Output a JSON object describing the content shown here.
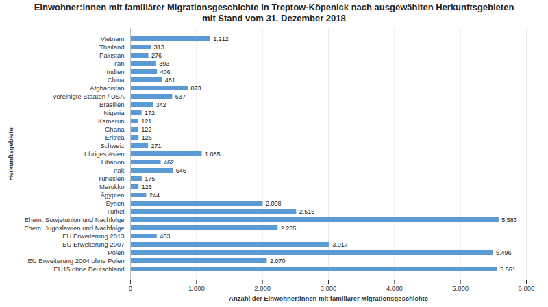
{
  "chart_data": {
    "type": "bar",
    "orientation": "horizontal",
    "title": "Einwohner:innen mit familiärer Migrationsgeschichte in Treptow-Köpenick nach ausgewählten Herkunftsgebieten",
    "subtitle": "mit Stand vom 31. Dezember 2018",
    "x_label": "Anzahl der Einwohner:innen mit familiärer Migrationsgeschichte",
    "y_label": "Herkunftsgebiete",
    "categories": [
      "Vietnam",
      "Thailand",
      "Pakistan",
      "Iran",
      "Indien",
      "China",
      "Afghanistan",
      "Vereinigte Staaten / USA",
      "Brasilien",
      "Nigeria",
      "Kamerun",
      "Ghana",
      "Eritrea",
      "Schweiz",
      "Übriges Asien",
      "Libanon",
      "Irak",
      "Tunesien",
      "Marokko",
      "Ägypten",
      "Syrien",
      "Türkei",
      "Ehem. Sowjetunion und Nachfolge",
      "Ehem. Jugoslawien und Nachfolge",
      "EU Erweiterung 2013",
      "EU Erweiterung 2007",
      "Polen",
      "EU Erweiterung 2004 ohne Polen",
      "EU15 ohne Deutschland"
    ],
    "values": [
      1212,
      313,
      276,
      393,
      406,
      481,
      873,
      637,
      342,
      172,
      121,
      122,
      126,
      271,
      1085,
      462,
      646,
      175,
      126,
      244,
      2008,
      2515,
      5583,
      2235,
      403,
      3017,
      5496,
      2070,
      5561
    ],
    "value_labels": [
      "1.212",
      "313",
      "276",
      "393",
      "406",
      "481",
      "873",
      "637",
      "342",
      "172",
      "121",
      "122",
      "126",
      "271",
      "1.085",
      "462",
      "646",
      "175",
      "126",
      "244",
      "2.008",
      "2.515",
      "5.583",
      "2.235",
      "403",
      "3.017",
      "5.496",
      "2.070",
      "5.561"
    ],
    "color": "#5b9bd5",
    "xlim": [
      0,
      6000
    ],
    "xticks": [
      0,
      {
        "value": 1000,
        "label": "1.000"
      },
      {
        "value": 2000,
        "label": "2.000"
      },
      {
        "value": 3000,
        "label": "3.000"
      },
      {
        "value": 4000,
        "label": "4.000"
      },
      {
        "value": 5000,
        "label": "5.000"
      },
      {
        "value": 6000,
        "label": "6.000"
      }
    ],
    "grid": true,
    "data_labels": true
  }
}
